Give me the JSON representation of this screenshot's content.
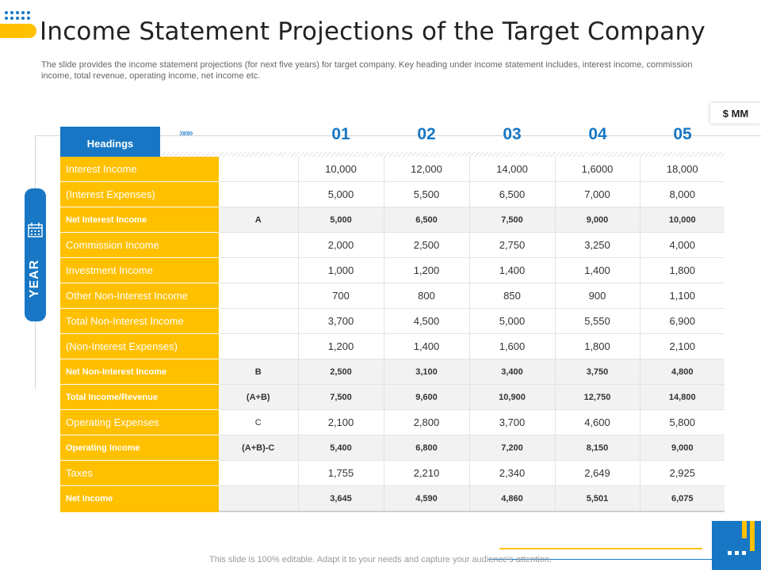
{
  "title": "Income Statement Projections of the Target Company",
  "subtitle": "The slide provides the income statement projections (for next five years) for target company. Key heading under income statement includes, interest income, commission income, total revenue, operating income, net income etc.",
  "unit": "$ MM",
  "headings_label": "Headings",
  "chevrons": "»»»",
  "year_label": "YEAR",
  "years": [
    "01",
    "02",
    "03",
    "04",
    "05"
  ],
  "rows": [
    {
      "label": "Interest Income",
      "ref": "",
      "values": [
        "10,000",
        "12,000",
        "14,000",
        "1,6000",
        "18,000"
      ],
      "bold": false
    },
    {
      "label": "(Interest Expenses)",
      "ref": "",
      "values": [
        "5,000",
        "5,500",
        "6,500",
        "7,000",
        "8,000"
      ],
      "bold": false
    },
    {
      "label": "Net Interest Income",
      "ref": "A",
      "values": [
        "5,000",
        "6,500",
        "7,500",
        "9,000",
        "10,000"
      ],
      "bold": true
    },
    {
      "label": "Commission Income",
      "ref": "",
      "values": [
        "2,000",
        "2,500",
        "2,750",
        "3,250",
        "4,000"
      ],
      "bold": false
    },
    {
      "label": "Investment Income",
      "ref": "",
      "values": [
        "1,000",
        "1,200",
        "1,400",
        "1,400",
        "1,800"
      ],
      "bold": false
    },
    {
      "label": "Other Non-Interest Income",
      "ref": "",
      "values": [
        "700",
        "800",
        "850",
        "900",
        "1,100"
      ],
      "bold": false
    },
    {
      "label": "Total Non-Interest Income",
      "ref": "",
      "values": [
        "3,700",
        "4,500",
        "5,000",
        "5,550",
        "6,900"
      ],
      "bold": false
    },
    {
      "label": "(Non-Interest Expenses)",
      "ref": "",
      "values": [
        "1,200",
        "1,400",
        "1,600",
        "1,800",
        "2,100"
      ],
      "bold": false
    },
    {
      "label": "Net Non-Interest Income",
      "ref": "B",
      "values": [
        "2,500",
        "3,100",
        "3,400",
        "3,750",
        "4,800"
      ],
      "bold": true
    },
    {
      "label": "Total Income/Revenue",
      "ref": "(A+B)",
      "values": [
        "7,500",
        "9,600",
        "10,900",
        "12,750",
        "14,800"
      ],
      "bold": true
    },
    {
      "label": "Operating Expenses",
      "ref": "C",
      "values": [
        "2,100",
        "2,800",
        "3,700",
        "4,600",
        "5,800"
      ],
      "bold": false
    },
    {
      "label": "Operating Income",
      "ref": "(A+B)-C",
      "values": [
        "5,400",
        "6,800",
        "7,200",
        "8,150",
        "9,000"
      ],
      "bold": true
    },
    {
      "label": "Taxes",
      "ref": "",
      "values": [
        "1,755",
        "2,210",
        "2,340",
        "2,649",
        "2,925"
      ],
      "bold": false
    },
    {
      "label": "Net Income",
      "ref": "",
      "values": [
        "3,645",
        "4,590",
        "4,860",
        "5,501",
        "6,075"
      ],
      "bold": true
    }
  ],
  "footer": "This slide is 100% editable. Adapt it to your needs and capture your audience's attention.",
  "colors": {
    "accent_blue": "#1777c4",
    "accent_yellow": "#ffc000"
  }
}
